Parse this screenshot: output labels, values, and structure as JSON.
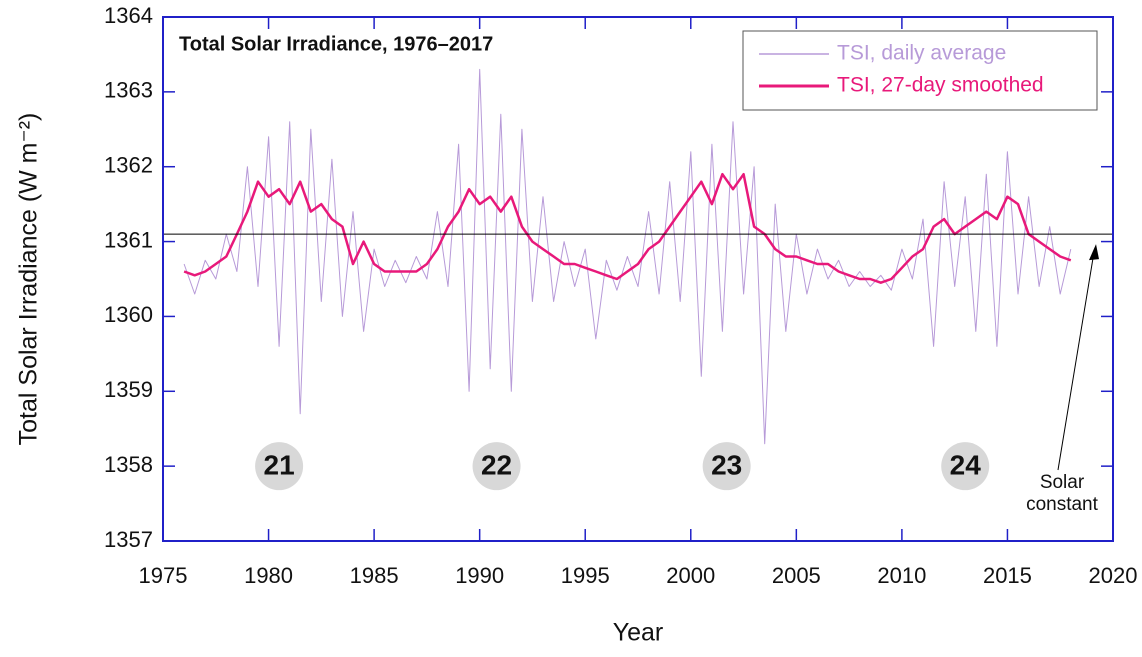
{
  "chart_data": {
    "type": "line",
    "title": "Total Solar Irradiance, 1976–2017",
    "x_label": "Year",
    "y_label": "Total Solar Irradiance (W m⁻²)",
    "xlim": [
      1975,
      2020
    ],
    "ylim": [
      1357,
      1364
    ],
    "xticks": [
      1975,
      1980,
      1985,
      1990,
      1995,
      2000,
      2005,
      2010,
      2015,
      2020
    ],
    "yticks": [
      1357,
      1358,
      1359,
      1360,
      1361,
      1362,
      1363,
      1364
    ],
    "legend": "upper right",
    "x": [
      1976,
      1976.5,
      1977,
      1977.5,
      1978,
      1978.5,
      1979,
      1979.5,
      1980,
      1980.5,
      1981,
      1981.5,
      1982,
      1982.5,
      1983,
      1983.5,
      1984,
      1984.5,
      1985,
      1985.5,
      1986,
      1986.5,
      1987,
      1987.5,
      1988,
      1988.5,
      1989,
      1989.5,
      1990,
      1990.5,
      1991,
      1991.5,
      1992,
      1992.5,
      1993,
      1993.5,
      1994,
      1994.5,
      1995,
      1995.5,
      1996,
      1996.5,
      1997,
      1997.5,
      1998,
      1998.5,
      1999,
      1999.5,
      2000,
      2000.5,
      2001,
      2001.5,
      2002,
      2002.5,
      2003,
      2003.5,
      2004,
      2004.5,
      2005,
      2005.5,
      2006,
      2006.5,
      2007,
      2007.5,
      2008,
      2008.5,
      2009,
      2009.5,
      2010,
      2010.5,
      2011,
      2011.5,
      2012,
      2012.5,
      2013,
      2013.5,
      2014,
      2014.5,
      2015,
      2015.5,
      2016,
      2016.5,
      2017,
      2017.5,
      2018
    ],
    "series": [
      {
        "name": "TSI, daily average",
        "color": "#b79ad8",
        "width": 1,
        "values": [
          1360.7,
          1360.3,
          1360.75,
          1360.5,
          1361.1,
          1360.6,
          1362.0,
          1360.4,
          1362.4,
          1359.6,
          1362.6,
          1358.7,
          1362.5,
          1360.2,
          1362.1,
          1360.0,
          1361.4,
          1359.8,
          1360.9,
          1360.4,
          1360.75,
          1360.45,
          1360.8,
          1360.5,
          1361.4,
          1360.4,
          1362.3,
          1359.0,
          1363.3,
          1359.3,
          1362.7,
          1359.0,
          1362.5,
          1360.2,
          1361.6,
          1360.2,
          1361.0,
          1360.4,
          1360.9,
          1359.7,
          1360.75,
          1360.35,
          1360.8,
          1360.4,
          1361.4,
          1360.3,
          1361.8,
          1360.2,
          1362.2,
          1359.2,
          1362.3,
          1359.8,
          1362.6,
          1360.3,
          1362.0,
          1358.3,
          1361.5,
          1359.8,
          1361.1,
          1360.3,
          1360.9,
          1360.5,
          1360.75,
          1360.4,
          1360.6,
          1360.4,
          1360.55,
          1360.35,
          1360.9,
          1360.5,
          1361.3,
          1359.6,
          1361.8,
          1360.4,
          1361.6,
          1359.8,
          1361.9,
          1359.6,
          1362.2,
          1360.3,
          1361.6,
          1360.4,
          1361.2,
          1360.3,
          1360.9
        ]
      },
      {
        "name": "TSI, 27-day smoothed",
        "color": "#e8197a",
        "width": 2.5,
        "values": [
          1360.6,
          1360.55,
          1360.6,
          1360.7,
          1360.8,
          1361.1,
          1361.4,
          1361.8,
          1361.6,
          1361.7,
          1361.5,
          1361.8,
          1361.4,
          1361.5,
          1361.3,
          1361.2,
          1360.7,
          1361.0,
          1360.7,
          1360.6,
          1360.6,
          1360.6,
          1360.6,
          1360.7,
          1360.9,
          1361.2,
          1361.4,
          1361.7,
          1361.5,
          1361.6,
          1361.4,
          1361.6,
          1361.2,
          1361.0,
          1360.9,
          1360.8,
          1360.7,
          1360.7,
          1360.65,
          1360.6,
          1360.55,
          1360.5,
          1360.6,
          1360.7,
          1360.9,
          1361.0,
          1361.2,
          1361.4,
          1361.6,
          1361.8,
          1361.5,
          1361.9,
          1361.7,
          1361.9,
          1361.2,
          1361.1,
          1360.9,
          1360.8,
          1360.8,
          1360.75,
          1360.7,
          1360.7,
          1360.6,
          1360.55,
          1360.5,
          1360.5,
          1360.45,
          1360.5,
          1360.65,
          1360.8,
          1360.9,
          1361.2,
          1361.3,
          1361.1,
          1361.2,
          1361.3,
          1361.4,
          1361.3,
          1361.6,
          1361.5,
          1361.1,
          1361.0,
          1360.9,
          1360.8,
          1360.75
        ]
      }
    ],
    "solar_constant": {
      "value": 1361.1,
      "label": "Solar constant"
    },
    "cycles": [
      {
        "label": "21",
        "x": 1980.5,
        "y": 1358
      },
      {
        "label": "22",
        "x": 1990.8,
        "y": 1358
      },
      {
        "label": "23",
        "x": 2001.7,
        "y": 1358
      },
      {
        "label": "24",
        "x": 2013.0,
        "y": 1358
      }
    ]
  }
}
